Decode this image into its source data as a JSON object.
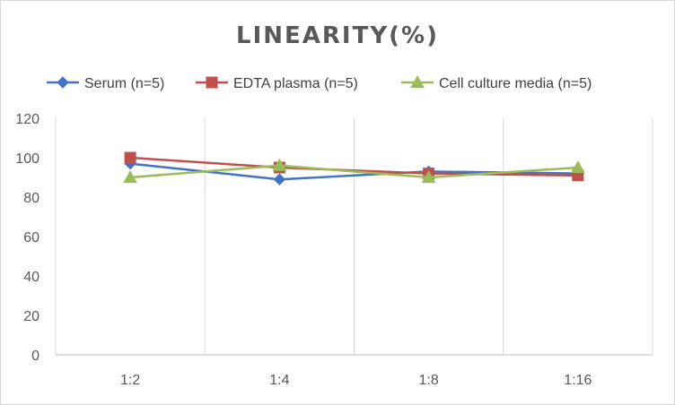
{
  "chart_data": {
    "type": "line",
    "title": "LINEARITY(%)",
    "xlabel": "",
    "ylabel": "",
    "categories": [
      "1:2",
      "1:4",
      "1:8",
      "1:16"
    ],
    "ylim": [
      0,
      120
    ],
    "yticks": [
      0,
      20,
      40,
      60,
      80,
      100,
      120
    ],
    "grid": "vertical category lines",
    "legend_position": "top",
    "series": [
      {
        "name": "Serum (n=5)",
        "values": [
          97,
          89,
          93,
          92
        ],
        "color": "#4472c4",
        "marker": "diamond"
      },
      {
        "name": "EDTA plasma (n=5)",
        "values": [
          100,
          95,
          92,
          91
        ],
        "color": "#c0504d",
        "marker": "square"
      },
      {
        "name": "Cell culture media (n=5)",
        "values": [
          90,
          96,
          90,
          95
        ],
        "color": "#9bbb59",
        "marker": "triangle"
      }
    ]
  }
}
